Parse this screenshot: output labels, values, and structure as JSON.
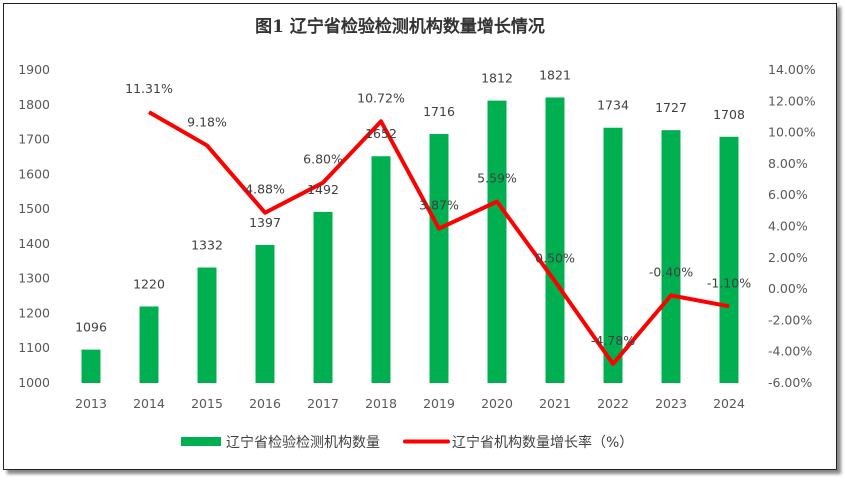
{
  "chart_data": {
    "type": "bar+line",
    "title": "图1 辽宁省检验检测机构数量增长情况",
    "categories": [
      "2013",
      "2014",
      "2015",
      "2016",
      "2017",
      "2018",
      "2019",
      "2020",
      "2021",
      "2022",
      "2023",
      "2024"
    ],
    "series": [
      {
        "name": "辽宁省检验检测机构数量",
        "type": "bar",
        "axis": "left",
        "color": "#00B050",
        "values": [
          1096,
          1220,
          1332,
          1397,
          1492,
          1652,
          1716,
          1812,
          1821,
          1734,
          1727,
          1708
        ],
        "labels": [
          "1096",
          "1220",
          "1332",
          "1397",
          "1492",
          "1652",
          "1716",
          "1812",
          "1821",
          "1734",
          "1727",
          "1708"
        ]
      },
      {
        "name": "辽宁省机构数量增长率（%）",
        "type": "line",
        "axis": "right",
        "color": "#FF0000",
        "values": [
          null,
          11.31,
          9.18,
          4.88,
          6.8,
          10.72,
          3.87,
          5.59,
          0.5,
          -4.78,
          -0.4,
          -1.1
        ],
        "labels": [
          "",
          "11.31%",
          "9.18%",
          "4.88%",
          "6.80%",
          "10.72%",
          "3.87%",
          "5.59%",
          "0.50%",
          "-4.78%",
          "-0.40%",
          "-1.10%"
        ]
      }
    ],
    "y_left": {
      "min": 1000,
      "max": 1900,
      "step": 100,
      "ticks": [
        "1000",
        "1100",
        "1200",
        "1300",
        "1400",
        "1500",
        "1600",
        "1700",
        "1800",
        "1900"
      ]
    },
    "y_right": {
      "min": -6,
      "max": 14,
      "step": 2,
      "ticks": [
        "-6.00%",
        "-4.00%",
        "-2.00%",
        "0.00%",
        "2.00%",
        "4.00%",
        "6.00%",
        "8.00%",
        "10.00%",
        "12.00%",
        "14.00%"
      ]
    },
    "grid": false,
    "legend": "bottom"
  }
}
